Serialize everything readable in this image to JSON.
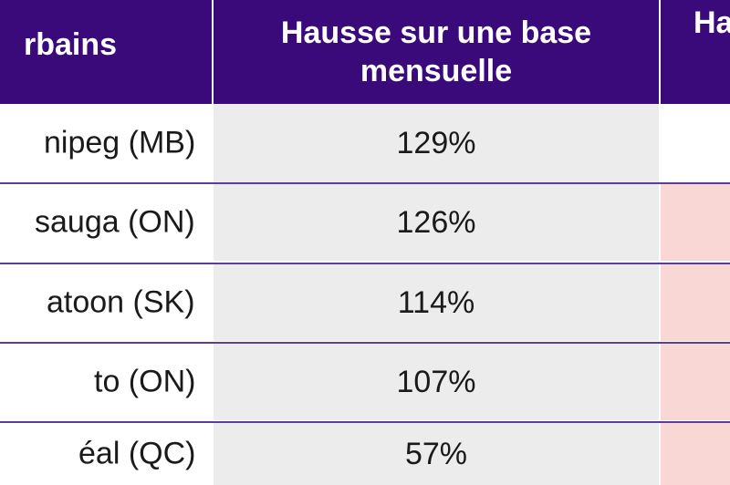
{
  "header": {
    "col1": "rbains",
    "col2": "Hausse sur une base mensuelle",
    "col3": "Ha"
  },
  "rows": [
    {
      "city": "nipeg (MB)",
      "value": "129%",
      "highlight": false
    },
    {
      "city": "sauga (ON)",
      "value": "126%",
      "highlight": true
    },
    {
      "city": "atoon (SK)",
      "value": "114%",
      "highlight": true
    },
    {
      "city": "to (ON)",
      "value": "107%",
      "highlight": true
    },
    {
      "city": "éal (QC)",
      "value": "57%",
      "highlight": true
    }
  ],
  "colors": {
    "header_bg": "#3b0a7a",
    "value_cell_bg": "#ececec",
    "highlight_cell_bg": "#f8d7d5",
    "row_divider": "#5b3d9a"
  }
}
